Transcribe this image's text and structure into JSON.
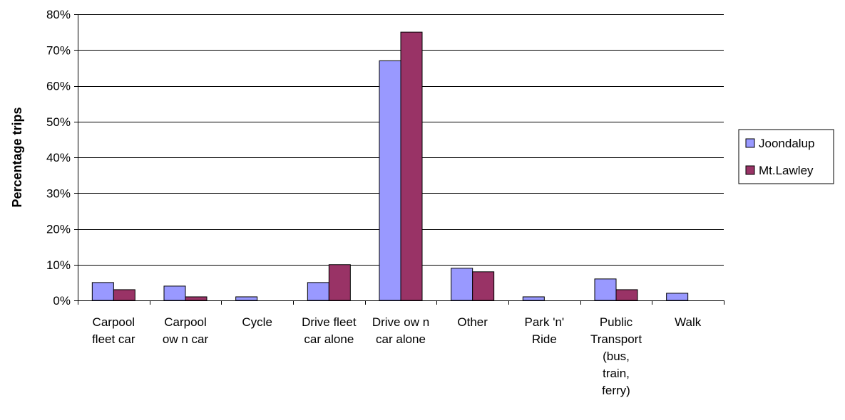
{
  "chart_data": {
    "type": "bar",
    "title": "",
    "xlabel": "",
    "ylabel": "Percentage trips",
    "ylim": [
      0,
      80
    ],
    "y_ticks": [
      "0%",
      "10%",
      "20%",
      "30%",
      "40%",
      "50%",
      "60%",
      "70%",
      "80%"
    ],
    "y_tick_values": [
      0,
      10,
      20,
      30,
      40,
      50,
      60,
      70,
      80
    ],
    "grid": true,
    "legend_position": "right",
    "categories": [
      [
        "Carpool",
        "fleet car"
      ],
      [
        "Carpool",
        "ow n car"
      ],
      [
        "Cycle"
      ],
      [
        "Drive fleet",
        "car alone"
      ],
      [
        "Drive ow n",
        "car alone"
      ],
      [
        "Other"
      ],
      [
        "Park 'n'",
        "Ride"
      ],
      [
        "Public",
        "Transport",
        "(bus,",
        "train,",
        "ferry)"
      ],
      [
        "Walk"
      ]
    ],
    "series": [
      {
        "name": "Joondalup",
        "color": "#9999ff",
        "values": [
          5,
          4,
          1,
          5,
          67,
          9,
          1,
          6,
          2
        ]
      },
      {
        "name": "Mt.Lawley",
        "color": "#993366",
        "values": [
          3,
          1,
          0,
          10,
          75,
          8,
          0,
          3,
          0
        ]
      }
    ]
  }
}
